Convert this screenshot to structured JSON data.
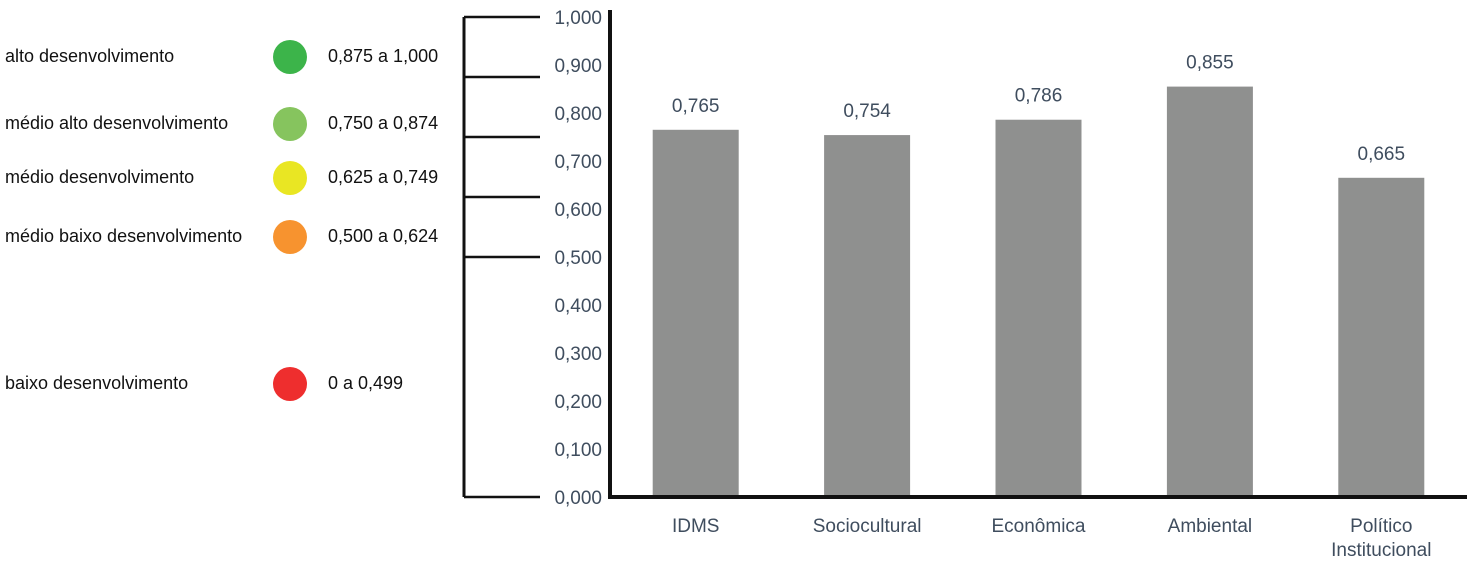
{
  "legend": {
    "items": [
      {
        "label": "alto desenvolvimento",
        "range": "0,875 a 1,000",
        "color": "#3cb44a"
      },
      {
        "label": "médio alto desenvolvimento",
        "range": "0,750 a 0,874",
        "color": "#86c45e"
      },
      {
        "label": "médio desenvolvimento",
        "range": "0,625 a 0,749",
        "color": "#e9e623"
      },
      {
        "label": "médio baixo desenvolvimento",
        "range": "0,500 a 0,624",
        "color": "#f7932f"
      },
      {
        "label": "baixo desenvolvimento",
        "range": "0 a 0,499",
        "color": "#ee2e2e"
      }
    ]
  },
  "chart_data": {
    "type": "bar",
    "categories": [
      "IDMS",
      "Sociocultural",
      "Econômica",
      "Ambiental",
      "Político Institucional"
    ],
    "values": [
      0.765,
      0.754,
      0.786,
      0.855,
      0.665
    ],
    "value_labels": [
      "0,765",
      "0,754",
      "0,786",
      "0,855",
      "0,665"
    ],
    "ylim": [
      0,
      1
    ],
    "yticks": [
      0,
      0.1,
      0.2,
      0.3,
      0.4,
      0.5,
      0.6,
      0.7,
      0.8,
      0.9,
      1.0
    ],
    "ytick_labels": [
      "0,000",
      "0,100",
      "0,200",
      "0,300",
      "0,400",
      "0,500",
      "0,600",
      "0,700",
      "0,800",
      "0,900",
      "1,000"
    ],
    "range_bracket_bounds": [
      0.5,
      0.625,
      0.75,
      0.875,
      1.0
    ],
    "title": "",
    "xlabel": "",
    "ylabel": "",
    "bar_color": "#8f908f",
    "axis_color": "#111111",
    "text_color": "#3f4d5e",
    "grid": false
  }
}
